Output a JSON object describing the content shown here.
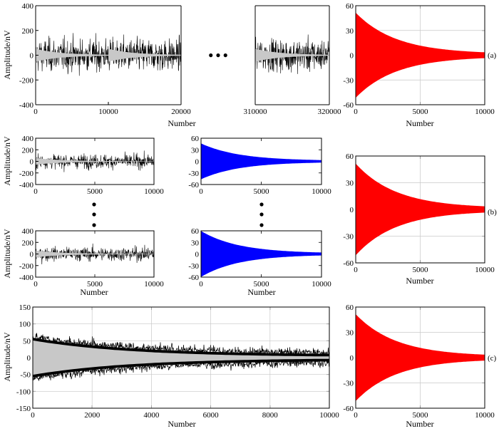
{
  "figure": {
    "panel_labels": [
      "(a)",
      "(b)",
      "(c)"
    ]
  },
  "chart_data": [
    {
      "id": "a-left",
      "type": "line",
      "xlabel": "Number",
      "ylabel": "Amplitude/nV",
      "ylim": [
        -400,
        400
      ],
      "yticks": [
        -400,
        -200,
        0,
        200,
        400
      ],
      "xtick_labels": [
        "0",
        "10000",
        "20000",
        "310000",
        "320000"
      ],
      "break_markers": "● ● ●",
      "noise_amplitude": 200,
      "decay_amplitude": 50,
      "series": [
        {
          "kind": "noise",
          "color": "#000000"
        },
        {
          "kind": "decay",
          "color": "#c8c8c8"
        }
      ]
    },
    {
      "id": "a-right",
      "type": "area",
      "xlabel": "Number",
      "xlim": [
        0,
        10000
      ],
      "ylim": [
        -60,
        60
      ],
      "xticks": [
        0,
        5000,
        10000
      ],
      "yticks": [
        -60,
        -30,
        0,
        30,
        60
      ],
      "grid": true,
      "amplitude": 50,
      "color": "#ff0000"
    },
    {
      "id": "b-left-top",
      "type": "line",
      "xlabel": "",
      "ylabel": "Amplitude/nV",
      "xlim": [
        0,
        10000
      ],
      "ylim": [
        -400,
        400
      ],
      "xticks": [
        0,
        5000,
        10000
      ],
      "yticks": [
        -400,
        -200,
        0,
        200,
        400
      ],
      "noise_amplitude": 200,
      "decay_amplitude": 55
    },
    {
      "id": "b-left-bottom",
      "type": "line",
      "xlabel": "Number",
      "ylabel": "Amplitude/nV",
      "xlim": [
        0,
        10000
      ],
      "ylim": [
        -400,
        400
      ],
      "xticks": [
        0,
        5000,
        10000
      ],
      "yticks": [
        -400,
        -200,
        0,
        200,
        400
      ],
      "noise_amplitude": 200,
      "decay_amplitude": 55
    },
    {
      "id": "b-mid-top",
      "type": "area",
      "xlabel": "",
      "xlim": [
        0,
        10000
      ],
      "ylim": [
        -60,
        60
      ],
      "xticks": [
        0,
        5000,
        10000
      ],
      "yticks": [
        -60,
        -30,
        0,
        30,
        60
      ],
      "amplitude": 45,
      "color": "#0000ff"
    },
    {
      "id": "b-mid-bottom",
      "type": "area",
      "xlabel": "Number",
      "xlim": [
        0,
        10000
      ],
      "ylim": [
        -60,
        60
      ],
      "xticks": [
        0,
        5000,
        10000
      ],
      "yticks": [
        -60,
        -30,
        0,
        30,
        60
      ],
      "amplitude": 58,
      "color": "#0000ff"
    },
    {
      "id": "b-right",
      "type": "area",
      "xlabel": "Number",
      "xlim": [
        0,
        10000
      ],
      "ylim": [
        -60,
        60
      ],
      "xticks": [
        0,
        5000,
        10000
      ],
      "yticks": [
        -60,
        -30,
        0,
        30,
        60
      ],
      "grid": true,
      "amplitude": 50,
      "color": "#ff0000"
    },
    {
      "id": "c-left",
      "type": "line",
      "xlabel": "Number",
      "ylabel": "Amplitude/nV",
      "xlim": [
        0,
        10000
      ],
      "ylim": [
        -150,
        150
      ],
      "xticks": [
        0,
        2000,
        4000,
        6000,
        8000,
        10000
      ],
      "yticks": [
        -150,
        -100,
        -50,
        0,
        50,
        100,
        150
      ],
      "grid": true,
      "noise_amplitude": 20,
      "decay_amplitude": 50
    },
    {
      "id": "c-right",
      "type": "area",
      "xlabel": "Number",
      "xlim": [
        0,
        10000
      ],
      "ylim": [
        -60,
        60
      ],
      "xticks": [
        0,
        5000,
        10000
      ],
      "yticks": [
        -60,
        -30,
        0,
        30,
        60
      ],
      "grid": true,
      "amplitude": 50,
      "color": "#ff0000"
    }
  ]
}
